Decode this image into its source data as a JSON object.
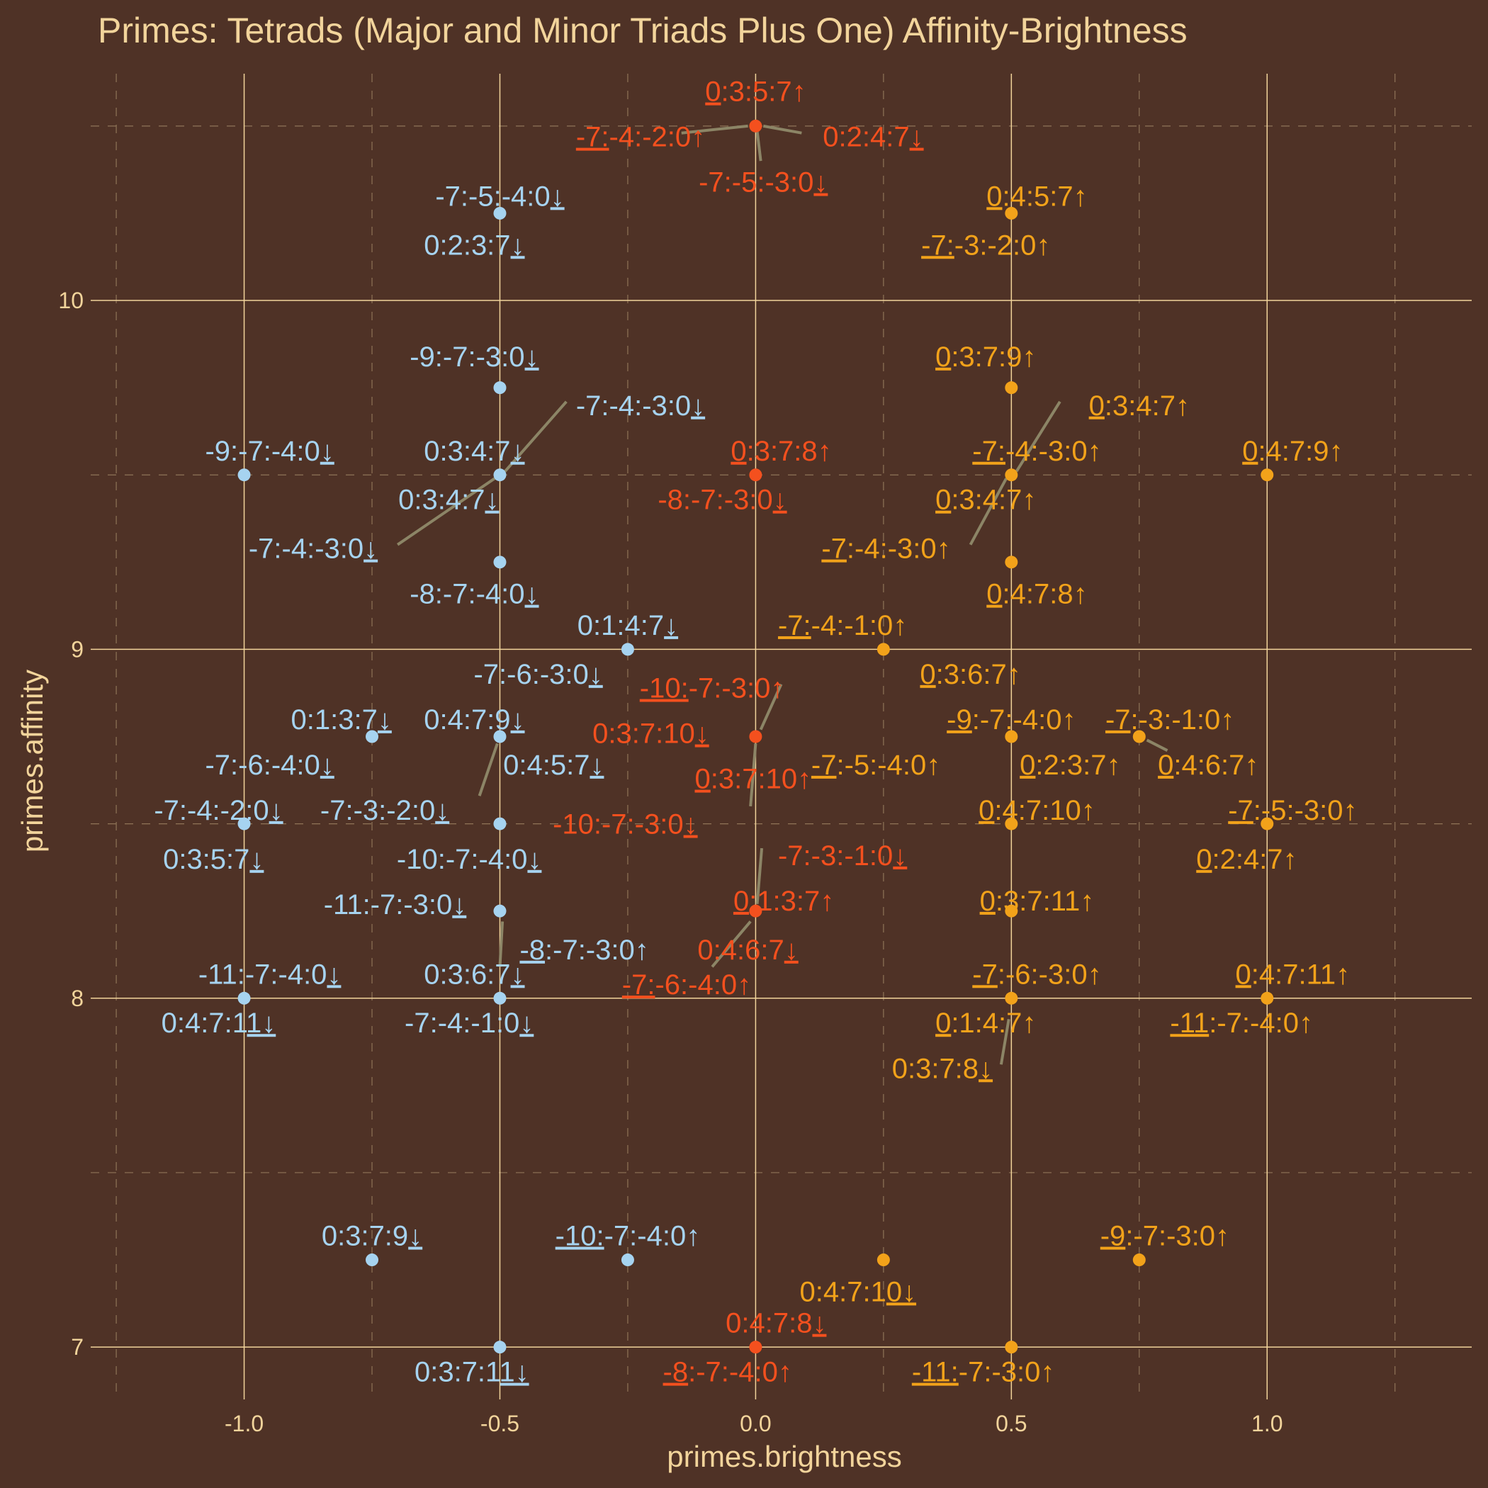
{
  "chart_data": {
    "type": "scatter",
    "title": "Primes: Tetrads (Major and Minor Triads Plus One) Affinity-Brightness",
    "xlabel": "primes.brightness",
    "ylabel": "primes.affinity",
    "xlim": [
      -1.3,
      1.4
    ],
    "ylim": [
      6.85,
      10.65
    ],
    "x_ticks": [
      -1.0,
      -0.5,
      0.0,
      0.5,
      1.0
    ],
    "x_tick_labels": [
      "-1.0",
      "-0.5",
      "0.0",
      "0.5",
      "1.0"
    ],
    "y_ticks": [
      7,
      8,
      9,
      10
    ],
    "y_tick_labels": [
      "7",
      "8",
      "9",
      "10"
    ],
    "grid": true,
    "legend": "none",
    "colors": {
      "background": "#4f3226",
      "major_grid": "#f2d49b",
      "minor_grid": "#8f7458",
      "text": "#f2d49b",
      "blue": "#a6d3f0",
      "red": "#f4501e",
      "orange": "#f2a21a",
      "leader": "#8c8566"
    },
    "points": [
      {
        "x": 0.0,
        "y": 10.5,
        "color": "red"
      },
      {
        "x": -0.5,
        "y": 10.25,
        "color": "blue"
      },
      {
        "x": 0.5,
        "y": 10.25,
        "color": "orange"
      },
      {
        "x": -0.5,
        "y": 9.75,
        "color": "blue"
      },
      {
        "x": 0.5,
        "y": 9.75,
        "color": "orange"
      },
      {
        "x": -1.0,
        "y": 9.5,
        "color": "blue"
      },
      {
        "x": -0.5,
        "y": 9.5,
        "color": "blue"
      },
      {
        "x": 0.0,
        "y": 9.5,
        "color": "red"
      },
      {
        "x": 0.5,
        "y": 9.5,
        "color": "orange"
      },
      {
        "x": 1.0,
        "y": 9.5,
        "color": "orange"
      },
      {
        "x": -0.5,
        "y": 9.25,
        "color": "blue"
      },
      {
        "x": 0.5,
        "y": 9.25,
        "color": "orange"
      },
      {
        "x": -0.25,
        "y": 9.0,
        "color": "blue"
      },
      {
        "x": 0.25,
        "y": 9.0,
        "color": "orange"
      },
      {
        "x": -0.75,
        "y": 8.75,
        "color": "blue"
      },
      {
        "x": -0.5,
        "y": 8.75,
        "color": "blue"
      },
      {
        "x": 0.0,
        "y": 8.75,
        "color": "red"
      },
      {
        "x": 0.5,
        "y": 8.75,
        "color": "orange"
      },
      {
        "x": 0.75,
        "y": 8.75,
        "color": "orange"
      },
      {
        "x": -1.0,
        "y": 8.5,
        "color": "blue"
      },
      {
        "x": -0.5,
        "y": 8.5,
        "color": "blue"
      },
      {
        "x": 0.5,
        "y": 8.5,
        "color": "orange"
      },
      {
        "x": 1.0,
        "y": 8.5,
        "color": "orange"
      },
      {
        "x": -0.5,
        "y": 8.25,
        "color": "blue"
      },
      {
        "x": 0.0,
        "y": 8.25,
        "color": "red"
      },
      {
        "x": 0.5,
        "y": 8.25,
        "color": "orange"
      },
      {
        "x": -1.0,
        "y": 8.0,
        "color": "blue"
      },
      {
        "x": -0.5,
        "y": 8.0,
        "color": "blue"
      },
      {
        "x": 0.5,
        "y": 8.0,
        "color": "orange"
      },
      {
        "x": 1.0,
        "y": 8.0,
        "color": "orange"
      },
      {
        "x": -0.75,
        "y": 7.25,
        "color": "blue"
      },
      {
        "x": -0.25,
        "y": 7.25,
        "color": "blue"
      },
      {
        "x": 0.25,
        "y": 7.25,
        "color": "orange"
      },
      {
        "x": 0.75,
        "y": 7.25,
        "color": "orange"
      },
      {
        "x": -0.5,
        "y": 7.0,
        "color": "blue"
      },
      {
        "x": 0.0,
        "y": 7.0,
        "color": "red"
      },
      {
        "x": 0.5,
        "y": 7.0,
        "color": "orange"
      }
    ],
    "labels": [
      {
        "text": "0:3:5:7↑",
        "x": 0.0,
        "y": 10.6,
        "color": "red",
        "u": [
          [
            0,
            1
          ]
        ]
      },
      {
        "text": "-7:-4:-2:0↑",
        "x": -0.225,
        "y": 10.47,
        "color": "red",
        "u": [
          [
            0,
            3
          ]
        ],
        "lead": [
          -0.145,
          10.48,
          -0.015,
          10.5
        ]
      },
      {
        "text": "0:2:4:7↓",
        "x": 0.23,
        "y": 10.47,
        "color": "red",
        "u": [
          [
            7,
            8
          ]
        ],
        "lead": [
          0.09,
          10.48,
          0.015,
          10.5
        ]
      },
      {
        "text": "-7:-5:-3:0↓",
        "x": 0.015,
        "y": 10.34,
        "color": "red",
        "u": [
          [
            10,
            11
          ]
        ],
        "lead": [
          0.01,
          10.4,
          0.003,
          10.485
        ]
      },
      {
        "text": "-7:-5:-4:0↓",
        "x": -0.5,
        "y": 10.3,
        "color": "blue",
        "u": [
          [
            10,
            11
          ]
        ]
      },
      {
        "text": "0:2:3:7↓",
        "x": -0.55,
        "y": 10.16,
        "color": "blue",
        "u": [
          [
            7,
            8
          ]
        ]
      },
      {
        "text": "0:4:5:7↑",
        "x": 0.55,
        "y": 10.3,
        "color": "orange",
        "u": [
          [
            0,
            1
          ]
        ]
      },
      {
        "text": "-7:-3:-2:0↑",
        "x": 0.45,
        "y": 10.16,
        "color": "orange",
        "u": [
          [
            0,
            3
          ]
        ]
      },
      {
        "text": "-9:-7:-3:0↓",
        "x": -0.55,
        "y": 9.84,
        "color": "blue",
        "u": [
          [
            10,
            11
          ]
        ]
      },
      {
        "text": "-7:-4:-3:0↓",
        "x": -0.225,
        "y": 9.7,
        "color": "blue",
        "u": [
          [
            10,
            11
          ]
        ],
        "lead": [
          -0.37,
          9.71,
          -0.49,
          9.51
        ]
      },
      {
        "text": "0:3:7:9↑",
        "x": 0.45,
        "y": 9.84,
        "color": "orange",
        "u": [
          [
            0,
            1
          ]
        ]
      },
      {
        "text": "0:3:4:7↑",
        "x": 0.75,
        "y": 9.7,
        "color": "orange",
        "u": [
          [
            0,
            1
          ]
        ],
        "lead": [
          0.595,
          9.71,
          0.51,
          9.51
        ]
      },
      {
        "text": "-9:-7:-4:0↓",
        "x": -0.95,
        "y": 9.57,
        "color": "blue",
        "u": [
          [
            10,
            11
          ]
        ]
      },
      {
        "text": "0:3:4:7↓",
        "x": -0.55,
        "y": 9.57,
        "color": "blue",
        "u": [
          [
            7,
            8
          ]
        ]
      },
      {
        "text": "0:3:7:8↑",
        "x": 0.05,
        "y": 9.57,
        "color": "red",
        "u": [
          [
            0,
            1
          ]
        ]
      },
      {
        "text": "-7:-4:-3:0↑",
        "x": 0.55,
        "y": 9.57,
        "color": "orange",
        "u": [
          [
            0,
            3
          ]
        ]
      },
      {
        "text": "0:4:7:9↑",
        "x": 1.05,
        "y": 9.57,
        "color": "orange",
        "u": [
          [
            0,
            1
          ]
        ]
      },
      {
        "text": "0:3:4:7↓",
        "x": -0.6,
        "y": 9.43,
        "color": "blue",
        "u": [
          [
            7,
            8
          ]
        ]
      },
      {
        "text": "-8:-7:-3:0↓",
        "x": -0.065,
        "y": 9.43,
        "color": "red",
        "u": [
          [
            10,
            11
          ]
        ]
      },
      {
        "text": "0:3:4:7↑",
        "x": 0.45,
        "y": 9.43,
        "color": "orange",
        "u": [
          [
            0,
            1
          ]
        ]
      },
      {
        "text": "-7:-4:-3:0↓",
        "x": -0.865,
        "y": 9.29,
        "color": "blue",
        "u": [
          [
            10,
            11
          ]
        ],
        "lead": [
          -0.7,
          9.3,
          -0.51,
          9.49
        ]
      },
      {
        "text": "-7:-4:-3:0↑",
        "x": 0.255,
        "y": 9.29,
        "color": "orange",
        "u": [
          [
            0,
            2
          ]
        ],
        "lead": [
          0.42,
          9.3,
          0.49,
          9.49
        ]
      },
      {
        "text": "-8:-7:-4:0↓",
        "x": -0.55,
        "y": 9.16,
        "color": "blue",
        "u": [
          [
            10,
            11
          ]
        ]
      },
      {
        "text": "0:4:7:8↑",
        "x": 0.55,
        "y": 9.16,
        "color": "orange",
        "u": [
          [
            0,
            1
          ]
        ]
      },
      {
        "text": "0:1:4:7↓",
        "x": -0.25,
        "y": 9.07,
        "color": "blue",
        "u": [
          [
            7,
            8
          ]
        ]
      },
      {
        "text": "-7:-4:-1:0↑",
        "x": 0.17,
        "y": 9.07,
        "color": "orange",
        "u": [
          [
            0,
            3
          ]
        ]
      },
      {
        "text": "-7:-6:-3:0↓",
        "x": -0.425,
        "y": 8.93,
        "color": "blue",
        "u": [
          [
            10,
            11
          ]
        ]
      },
      {
        "text": "0:3:6:7↑",
        "x": 0.42,
        "y": 8.93,
        "color": "orange",
        "u": [
          [
            0,
            1
          ]
        ]
      },
      {
        "text": "-10:-7:-3:0↑",
        "x": -0.085,
        "y": 8.89,
        "color": "red",
        "u": [
          [
            0,
            4
          ]
        ],
        "lead": [
          0.05,
          8.9,
          0.01,
          8.77
        ]
      },
      {
        "text": "0:1:3:7↓",
        "x": -0.81,
        "y": 8.8,
        "color": "blue",
        "u": [
          [
            7,
            8
          ]
        ]
      },
      {
        "text": "0:4:7:9↓",
        "x": -0.55,
        "y": 8.8,
        "color": "blue",
        "u": [
          [
            7,
            8
          ]
        ]
      },
      {
        "text": "0:3:7:10↓",
        "x": -0.205,
        "y": 8.76,
        "color": "red",
        "u": [
          [
            8,
            9
          ]
        ]
      },
      {
        "text": "-9:-7:-4:0↑",
        "x": 0.5,
        "y": 8.8,
        "color": "orange",
        "u": [
          [
            0,
            2
          ]
        ]
      },
      {
        "text": "-7:-3:-1:0↑",
        "x": 0.81,
        "y": 8.8,
        "color": "orange",
        "u": [
          [
            0,
            2
          ]
        ]
      },
      {
        "text": "-7:-6:-4:0↓",
        "x": -0.95,
        "y": 8.67,
        "color": "blue",
        "u": [
          [
            10,
            11
          ]
        ]
      },
      {
        "text": "0:4:5:7↓",
        "x": -0.395,
        "y": 8.67,
        "color": "blue",
        "u": [
          [
            7,
            8
          ]
        ],
        "lead": [
          -0.54,
          8.58,
          -0.505,
          8.73
        ]
      },
      {
        "text": "0:3:7:10↑",
        "x": -0.005,
        "y": 8.63,
        "color": "red",
        "u": [
          [
            0,
            1
          ]
        ]
      },
      {
        "text": "-7:-5:-4:0↑",
        "x": 0.235,
        "y": 8.67,
        "color": "orange",
        "u": [
          [
            0,
            2
          ]
        ]
      },
      {
        "text": "0:2:3:7↑",
        "x": 0.615,
        "y": 8.67,
        "color": "orange",
        "u": [
          [
            0,
            1
          ]
        ]
      },
      {
        "text": "0:4:6:7↑",
        "x": 0.885,
        "y": 8.67,
        "color": "orange",
        "u": [
          [
            0,
            1
          ]
        ],
        "lead": [
          0.805,
          8.71,
          0.765,
          8.74
        ]
      },
      {
        "text": "-7:-4:-2:0↓",
        "x": -1.05,
        "y": 8.54,
        "color": "blue",
        "u": [
          [
            10,
            11
          ]
        ]
      },
      {
        "text": "-7:-3:-2:0↓",
        "x": -0.725,
        "y": 8.54,
        "color": "blue",
        "u": [
          [
            10,
            11
          ]
        ]
      },
      {
        "text": "-10:-7:-3:0↓",
        "x": -0.255,
        "y": 8.5,
        "color": "red",
        "u": [
          [
            11,
            12
          ]
        ],
        "lead": [
          -0.01,
          8.55,
          0.0,
          8.73
        ]
      },
      {
        "text": "0:4:7:10↑",
        "x": 0.55,
        "y": 8.54,
        "color": "orange",
        "u": [
          [
            0,
            1
          ]
        ]
      },
      {
        "text": "-7:-5:-3:0↑",
        "x": 1.05,
        "y": 8.54,
        "color": "orange",
        "u": [
          [
            0,
            2
          ]
        ]
      },
      {
        "text": "0:3:5:7↓",
        "x": -1.06,
        "y": 8.4,
        "color": "blue",
        "u": [
          [
            7,
            8
          ]
        ]
      },
      {
        "text": "-10:-7:-4:0↓",
        "x": -0.56,
        "y": 8.4,
        "color": "blue",
        "u": [
          [
            11,
            12
          ]
        ]
      },
      {
        "text": "0:2:4:7↑",
        "x": 0.96,
        "y": 8.4,
        "color": "orange",
        "u": [
          [
            0,
            1
          ]
        ]
      },
      {
        "text": "-7:-3:-1:0↓",
        "x": 0.17,
        "y": 8.41,
        "color": "red",
        "u": [
          [
            10,
            11
          ]
        ],
        "lead": [
          0.012,
          8.43,
          0.003,
          8.27
        ]
      },
      {
        "text": "-11:-7:-3:0↓",
        "x": -0.705,
        "y": 8.27,
        "color": "blue",
        "u": [
          [
            11,
            12
          ]
        ]
      },
      {
        "text": "0:1:3:7↑",
        "x": 0.055,
        "y": 8.28,
        "color": "red",
        "u": [
          [
            0,
            1
          ]
        ]
      },
      {
        "text": "0:3:7:11↑",
        "x": 0.55,
        "y": 8.28,
        "color": "orange",
        "u": [
          [
            0,
            1
          ]
        ]
      },
      {
        "text": "-8:-7:-3:0↑",
        "x": -0.335,
        "y": 8.14,
        "color": "blue",
        "u": [
          [
            0,
            2
          ]
        ],
        "lead": [
          -0.5,
          8.09,
          -0.495,
          8.22
        ]
      },
      {
        "text": "0:4:6:7↓",
        "x": -0.015,
        "y": 8.14,
        "color": "red",
        "u": [
          [
            7,
            8
          ]
        ],
        "lead": [
          -0.085,
          8.09,
          -0.01,
          8.22
        ]
      },
      {
        "text": "-11:-7:-4:0↓",
        "x": -0.95,
        "y": 8.07,
        "color": "blue",
        "u": [
          [
            11,
            12
          ]
        ]
      },
      {
        "text": "0:3:6:7↓",
        "x": -0.55,
        "y": 8.07,
        "color": "blue",
        "u": [
          [
            7,
            8
          ]
        ]
      },
      {
        "text": "-7:-6:-4:0↑",
        "x": -0.135,
        "y": 8.04,
        "color": "red",
        "u": [
          [
            0,
            3
          ]
        ]
      },
      {
        "text": "-7:-6:-3:0↑",
        "x": 0.55,
        "y": 8.07,
        "color": "orange",
        "u": [
          [
            0,
            2
          ]
        ]
      },
      {
        "text": "0:4:7:11↑",
        "x": 1.05,
        "y": 8.07,
        "color": "orange",
        "u": [
          [
            0,
            1
          ]
        ]
      },
      {
        "text": "0:4:7:11↓",
        "x": -1.05,
        "y": 7.93,
        "color": "blue",
        "u": [
          [
            7,
            9
          ]
        ]
      },
      {
        "text": "-7:-4:-1:0↓",
        "x": -0.56,
        "y": 7.93,
        "color": "blue",
        "u": [
          [
            10,
            11
          ]
        ]
      },
      {
        "text": "0:1:4:7↑",
        "x": 0.45,
        "y": 7.93,
        "color": "orange",
        "u": [
          [
            0,
            1
          ]
        ]
      },
      {
        "text": "-11:-7:-4:0↑",
        "x": 0.95,
        "y": 7.93,
        "color": "orange",
        "u": [
          [
            0,
            3
          ]
        ]
      },
      {
        "text": "0:3:7:8↓",
        "x": 0.365,
        "y": 7.8,
        "color": "orange",
        "u": [
          [
            7,
            8
          ]
        ],
        "lead": [
          0.48,
          7.81,
          0.495,
          7.94
        ]
      },
      {
        "text": "0:3:7:9↓",
        "x": -0.75,
        "y": 7.32,
        "color": "blue",
        "u": [
          [
            7,
            8
          ]
        ]
      },
      {
        "text": "-10:-7:-4:0↑",
        "x": -0.25,
        "y": 7.32,
        "color": "blue",
        "u": [
          [
            0,
            4
          ]
        ]
      },
      {
        "text": "-9:-7:-3:0↑",
        "x": 0.8,
        "y": 7.32,
        "color": "orange",
        "u": [
          [
            0,
            2
          ]
        ]
      },
      {
        "text": "0:4:7:10↓",
        "x": 0.2,
        "y": 7.16,
        "color": "orange",
        "u": [
          [
            7,
            9
          ]
        ]
      },
      {
        "text": "0:4:7:8↓",
        "x": 0.04,
        "y": 7.07,
        "color": "red",
        "u": [
          [
            7,
            8
          ]
        ]
      },
      {
        "text": "0:3:7:11↓",
        "x": -0.555,
        "y": 6.93,
        "color": "blue",
        "u": [
          [
            7,
            9
          ]
        ]
      },
      {
        "text": "-8:-7:-4:0↑",
        "x": -0.055,
        "y": 6.93,
        "color": "red",
        "u": [
          [
            0,
            2
          ]
        ]
      },
      {
        "text": "-11:-7:-3:0↑",
        "x": 0.445,
        "y": 6.93,
        "color": "orange",
        "u": [
          [
            0,
            4
          ]
        ]
      }
    ]
  }
}
